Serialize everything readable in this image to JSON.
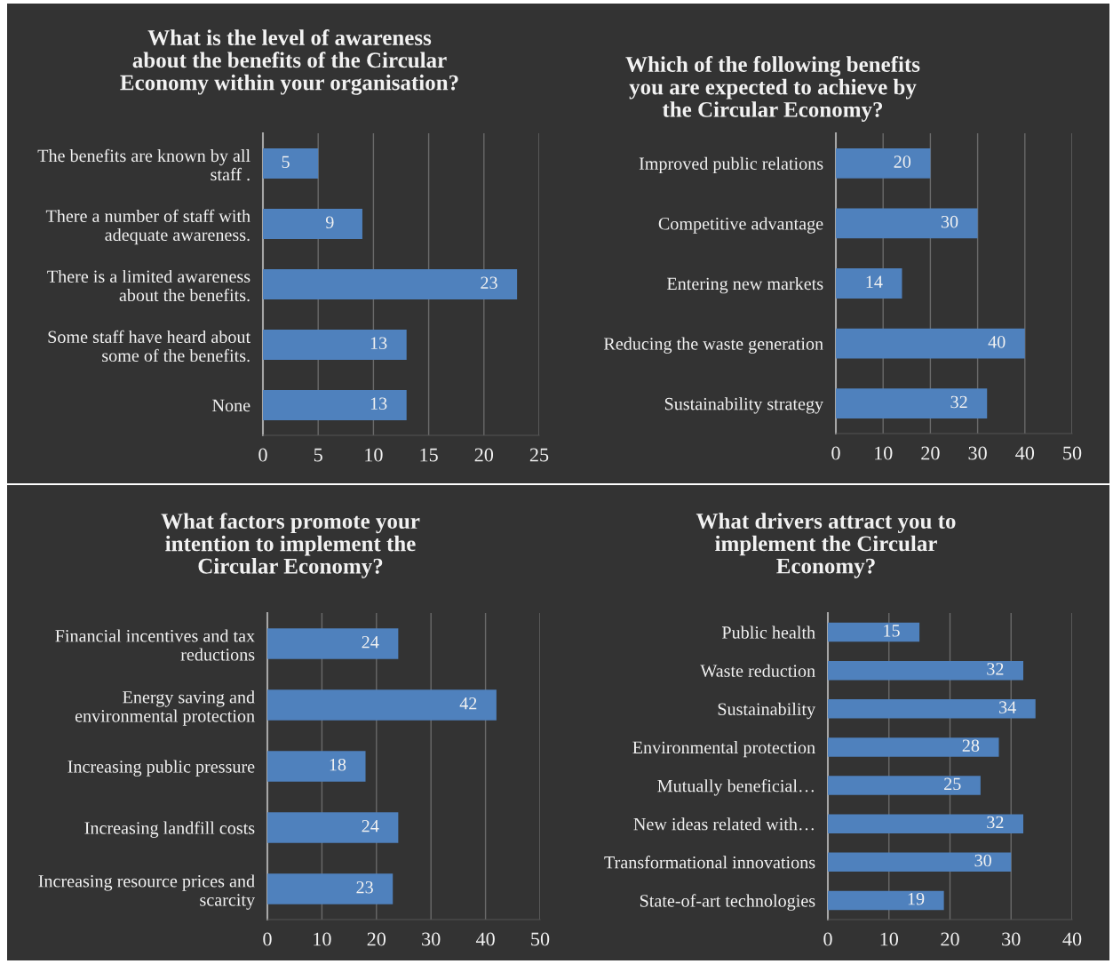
{
  "chart_data": [
    {
      "type": "bar",
      "orientation": "horizontal",
      "title": "What is the level of awareness\nabout the benefits of the Circular\nEconomy within your organisation?",
      "categories": [
        "The benefits are known by all\nstaff .",
        "There a number of staff with\nadequate awareness.",
        "There is a limited awareness\nabout the benefits.",
        "Some staff have heard about\nsome of the benefits.",
        "None"
      ],
      "values": [
        5,
        9,
        23,
        13,
        13
      ],
      "color": "#4f81bd",
      "xlim": [
        0,
        25
      ],
      "xticks": [
        0,
        5,
        10,
        15,
        20,
        25
      ],
      "grid": "x",
      "data_labels": true
    },
    {
      "type": "bar",
      "orientation": "horizontal",
      "title": "Which of the following benefits\nyou are expected to achieve by\nthe Circular Economy?",
      "categories": [
        "Improved public relations",
        "Competitive advantage",
        "Entering new markets",
        "Reducing the waste generation",
        "Sustainability strategy"
      ],
      "values": [
        20,
        30,
        14,
        40,
        32
      ],
      "color": "#4f81bd",
      "xlim": [
        0,
        50
      ],
      "xticks": [
        0,
        10,
        20,
        30,
        40,
        50
      ],
      "grid": "x",
      "data_labels": true
    },
    {
      "type": "bar",
      "orientation": "horizontal",
      "title": "What factors promote your\nintention to implement the\nCircular Economy?",
      "categories": [
        "Financial incentives and tax\nreductions",
        "Energy saving and\nenvironmental protection",
        "Increasing public pressure",
        "Increasing landfill costs",
        "Increasing resource prices and\nscarcity"
      ],
      "values": [
        24,
        42,
        18,
        24,
        23
      ],
      "color": "#4f81bd",
      "xlim": [
        0,
        50
      ],
      "xticks": [
        0,
        10,
        20,
        30,
        40,
        50
      ],
      "grid": "x",
      "data_labels": true
    },
    {
      "type": "bar",
      "orientation": "horizontal",
      "title": "What drivers attract you to\nimplement the Circular\nEconomy?",
      "categories": [
        "Public health",
        "Waste reduction",
        "Sustainability",
        "Environmental protection",
        "Mutually beneficial…",
        "New ideas related with…",
        "Transformational innovations",
        "State-of-art technologies"
      ],
      "values": [
        15,
        32,
        34,
        28,
        25,
        32,
        30,
        19
      ],
      "color": "#4f81bd",
      "xlim": [
        0,
        40
      ],
      "xticks": [
        0,
        10,
        20,
        30,
        40
      ],
      "grid": "x",
      "data_labels": true
    }
  ]
}
